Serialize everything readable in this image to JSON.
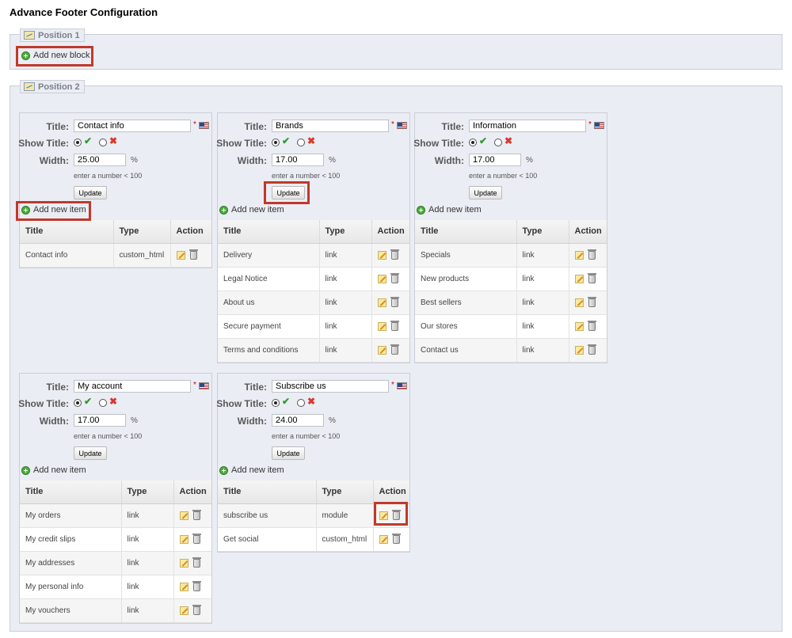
{
  "page": {
    "title": "Advance Footer Configuration"
  },
  "position1": {
    "legend": "Position 1",
    "add_block_label": "Add new block"
  },
  "position2": {
    "legend": "Position 2"
  },
  "labels": {
    "title": "Title:",
    "show_title": "Show Title:",
    "width": "Width:",
    "required": "*",
    "percent": "%",
    "hint": "enter a number < 100",
    "update": "Update",
    "add_item": "Add new item",
    "col_title": "Title",
    "col_type": "Type",
    "col_action": "Action"
  },
  "blocks": [
    {
      "title": "Contact info",
      "width": "25.00",
      "items": [
        {
          "title": "Contact info",
          "type": "custom_html"
        }
      ]
    },
    {
      "title": "Brands",
      "width": "17.00",
      "items": [
        {
          "title": "Delivery",
          "type": "link"
        },
        {
          "title": "Legal Notice",
          "type": "link"
        },
        {
          "title": "About us",
          "type": "link"
        },
        {
          "title": "Secure payment",
          "type": "link"
        },
        {
          "title": "Terms and conditions",
          "type": "link"
        }
      ]
    },
    {
      "title": "Information",
      "width": "17.00",
      "items": [
        {
          "title": "Specials",
          "type": "link"
        },
        {
          "title": "New products",
          "type": "link"
        },
        {
          "title": "Best sellers",
          "type": "link"
        },
        {
          "title": "Our stores",
          "type": "link"
        },
        {
          "title": "Contact us",
          "type": "link"
        }
      ]
    },
    {
      "title": "My account",
      "width": "17.00",
      "items": [
        {
          "title": "My orders",
          "type": "link"
        },
        {
          "title": "My credit slips",
          "type": "link"
        },
        {
          "title": "My addresses",
          "type": "link"
        },
        {
          "title": "My personal info",
          "type": "link"
        },
        {
          "title": "My vouchers",
          "type": "link"
        }
      ]
    },
    {
      "title": "Subscribe us",
      "width": "24.00",
      "items": [
        {
          "title": "subscribe us",
          "type": "module"
        },
        {
          "title": "Get social",
          "type": "custom_html"
        }
      ]
    }
  ],
  "colors": {
    "highlight": "#c0392b",
    "panel_bg": "#ebedf4",
    "check": "#2e9b2e",
    "cross": "#d9382d"
  }
}
